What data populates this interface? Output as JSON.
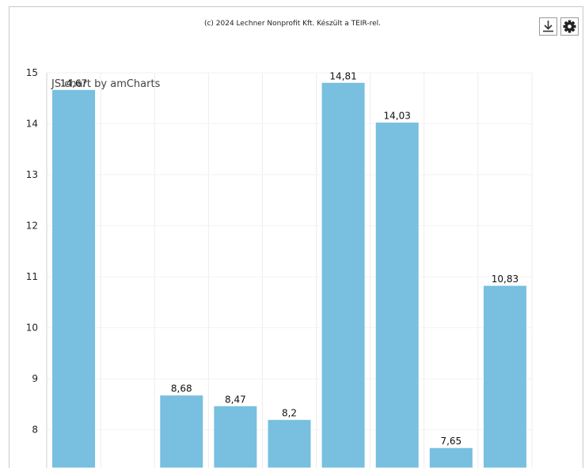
{
  "header": {
    "copyright": "(c) 2024 Lechner Nonprofit Kft. Készült a TEIR-rel.",
    "credit": "JS chart by amCharts"
  },
  "toolbar": {
    "download_icon": "download-icon",
    "settings_icon": "gear-icon"
  },
  "chart_data": {
    "type": "bar",
    "categories": [
      "",
      "",
      "",
      "",
      "",
      "",
      "",
      "",
      ""
    ],
    "values": [
      14.67,
      null,
      8.68,
      8.47,
      8.2,
      14.81,
      14.03,
      7.65,
      10.83
    ],
    "value_labels": [
      "14,67",
      "",
      "8,68",
      "8,47",
      "8,2",
      "14,81",
      "14,03",
      "7,65",
      "10,83"
    ],
    "y_ticks": [
      8,
      9,
      10,
      11,
      12,
      13,
      14,
      15
    ],
    "ylim": [
      7.25,
      15
    ],
    "grid": true,
    "bar_color": "#78bfe0"
  }
}
